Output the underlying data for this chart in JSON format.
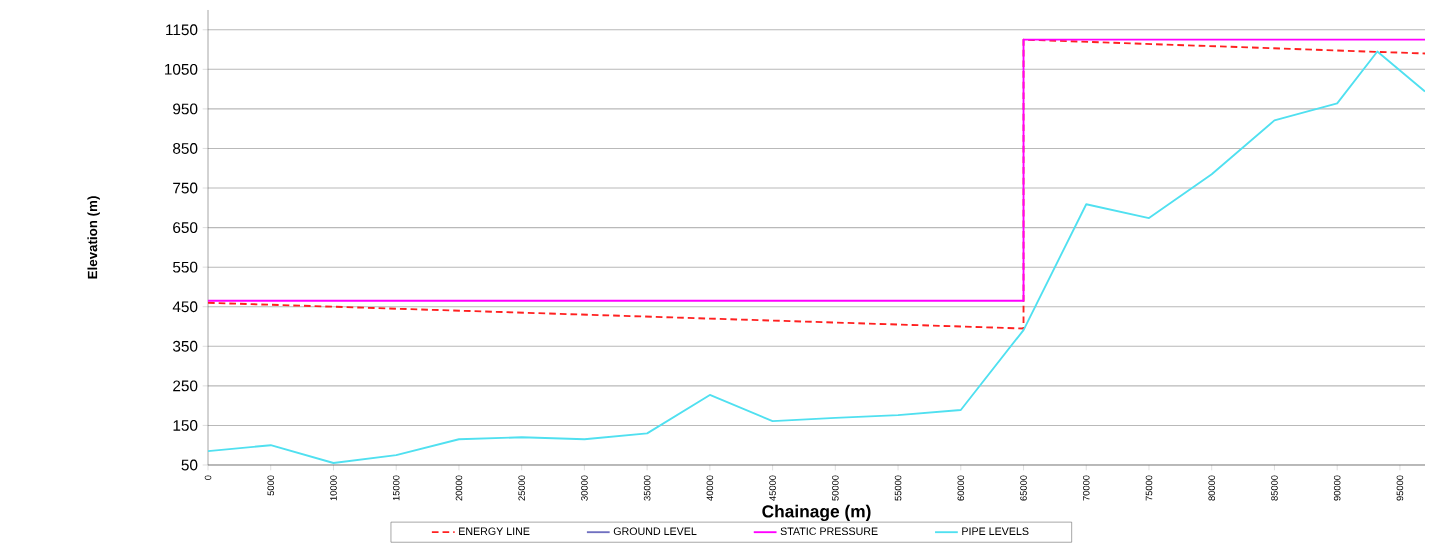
{
  "chart_data": {
    "type": "line",
    "xlabel": "Chainage (m)",
    "ylabel": "Elevation (m)",
    "xlim": [
      0,
      97000
    ],
    "xticks": [
      0,
      5000,
      10000,
      15000,
      20000,
      25000,
      30000,
      35000,
      40000,
      45000,
      50000,
      55000,
      60000,
      65000,
      70000,
      75000,
      80000,
      85000,
      90000,
      95000
    ],
    "ylim": [
      50,
      1200
    ],
    "yticks": [
      50,
      150,
      250,
      350,
      450,
      550,
      650,
      750,
      850,
      950,
      1050,
      1150
    ],
    "grid": "y",
    "legend": "bottom",
    "marker": "none",
    "series": [
      {
        "name": "ENERGY LINE",
        "color": "#ff2020",
        "line_style": "dashed",
        "x": [
          0,
          65000,
          65000,
          97000
        ],
        "values": [
          460,
          395,
          1125,
          1090
        ]
      },
      {
        "name": "GROUND LEVEL",
        "color": "#7070c0",
        "line_style": "solid"
      },
      {
        "name": "STATIC PRESSURE",
        "color": "#ff00ff",
        "line_style": "solid",
        "x": [
          0,
          65000,
          65000,
          97000
        ],
        "values": [
          465,
          465,
          1125,
          1125
        ]
      },
      {
        "name": "PIPE LEVELS",
        "color": "#50e0f0",
        "line_style": "solid",
        "x": [
          0,
          5000,
          10000,
          15000,
          20000,
          25000,
          30000,
          35000,
          40000,
          45000,
          50000,
          55000,
          60000,
          65000,
          70000,
          75000,
          80000,
          85000,
          90000,
          93200,
          97000
        ],
        "values": [
          85,
          100,
          55,
          75,
          115,
          120,
          115,
          130,
          227,
          161,
          169,
          176,
          189,
          391,
          709,
          674,
          785,
          921,
          964,
          1095,
          994
        ]
      }
    ]
  }
}
